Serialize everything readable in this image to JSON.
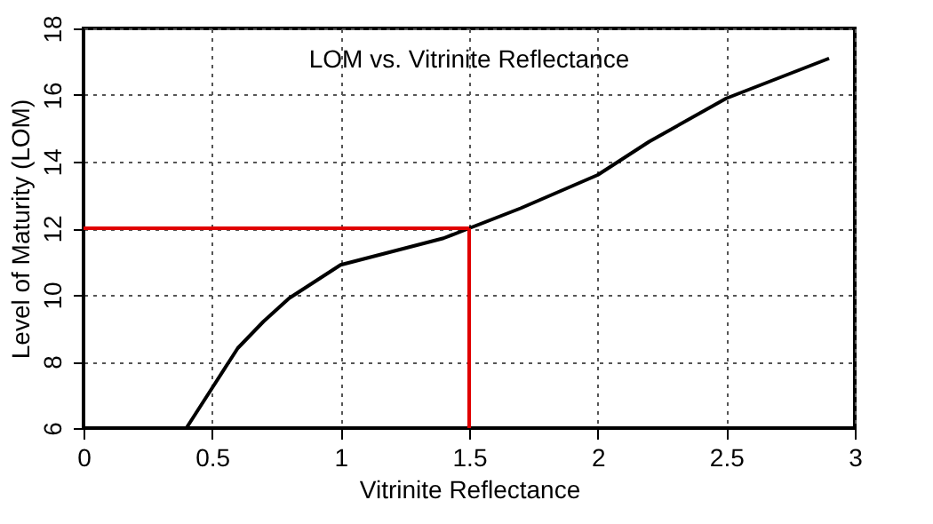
{
  "chart_data": {
    "type": "line",
    "title": "LOM vs. Vitrinite Reflectance",
    "xlabel": "Vitrinite Reflectance",
    "ylabel": "Level of Maturity (LOM)",
    "series": [
      {
        "color": "#000000",
        "x": [
          0.4,
          0.5,
          0.6,
          0.7,
          0.8,
          0.9,
          1.0,
          1.2,
          1.4,
          1.5,
          1.7,
          2.0,
          2.2,
          2.5,
          2.9
        ],
        "values": [
          6,
          7.2,
          8.4,
          9.2,
          9.9,
          10.4,
          10.9,
          11.3,
          11.7,
          12,
          12.6,
          13.6,
          14.6,
          15.9,
          17.1
        ]
      },
      {
        "color": "#e00000",
        "x": [
          1.5,
          1.5
        ],
        "values": [
          6,
          12
        ]
      },
      {
        "color": "#e00000",
        "x": [
          1.5,
          0
        ],
        "values": [
          12,
          12
        ]
      }
    ],
    "xlim": [
      0,
      3
    ],
    "xticks": [
      0,
      0.5,
      1,
      1.5,
      2,
      2.5,
      3
    ],
    "ylim": [
      6,
      18
    ],
    "yticks": [
      6,
      8,
      10,
      12,
      14,
      16,
      18
    ],
    "grid": true,
    "legend": false,
    "marker": "none"
  }
}
